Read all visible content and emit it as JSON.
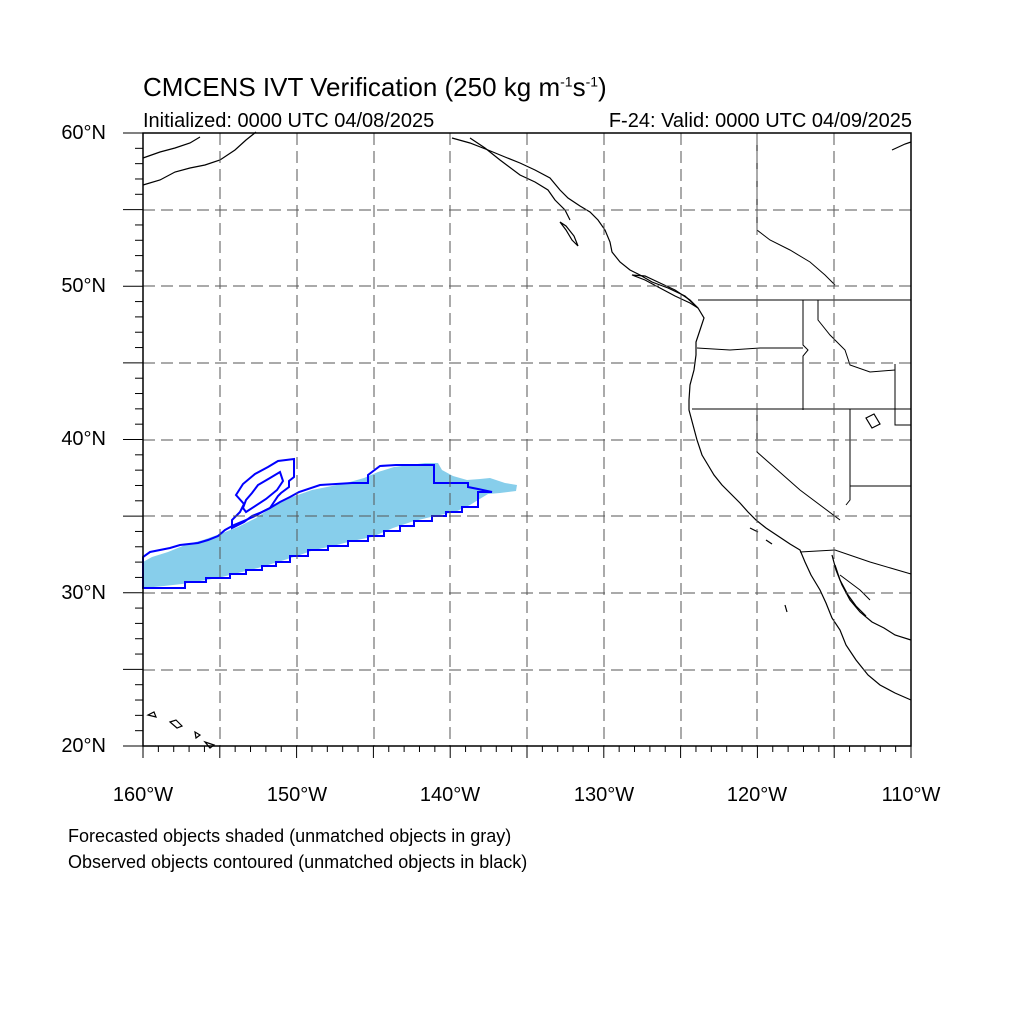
{
  "title": {
    "main": "CMCENS IVT Verification (250 kg m",
    "exp1": "-1",
    "mid": "s",
    "exp2": "-1",
    "end": ")"
  },
  "subtitle": {
    "left": "Initialized: 0000 UTC 04/08/2025",
    "right": "F-24: Valid: 0000 UTC 04/09/2025"
  },
  "axes": {
    "lat_labels": [
      "60°N",
      "50°N",
      "40°N",
      "30°N",
      "20°N"
    ],
    "lon_labels": [
      "160°W",
      "150°W",
      "140°W",
      "130°W",
      "120°W",
      "110°W"
    ],
    "lat_range": [
      20,
      60
    ],
    "lon_range": [
      -160,
      -110
    ],
    "grid": "dashed every 5 degrees"
  },
  "legend": {
    "line1": "Forecasted objects shaded (unmatched objects in gray)",
    "line2": "Observed objects contoured (unmatched objects in black)"
  },
  "colors": {
    "forecast_fill": "#87ceeb",
    "observed_contour": "#0000ff",
    "coastline": "#000000",
    "grid": "#555555"
  },
  "forecast_object": {
    "status": "matched",
    "region_lon": [
      -160,
      -136
    ],
    "region_lat": [
      30.5,
      38
    ]
  },
  "observed_objects": [
    {
      "status": "matched",
      "region_lon": [
        -160,
        -137.5
      ],
      "region_lat": [
        30.3,
        38.4
      ]
    },
    {
      "status": "matched",
      "region_lon": [
        -155,
        -150.5
      ],
      "region_lat": [
        33,
        38.8
      ]
    }
  ]
}
